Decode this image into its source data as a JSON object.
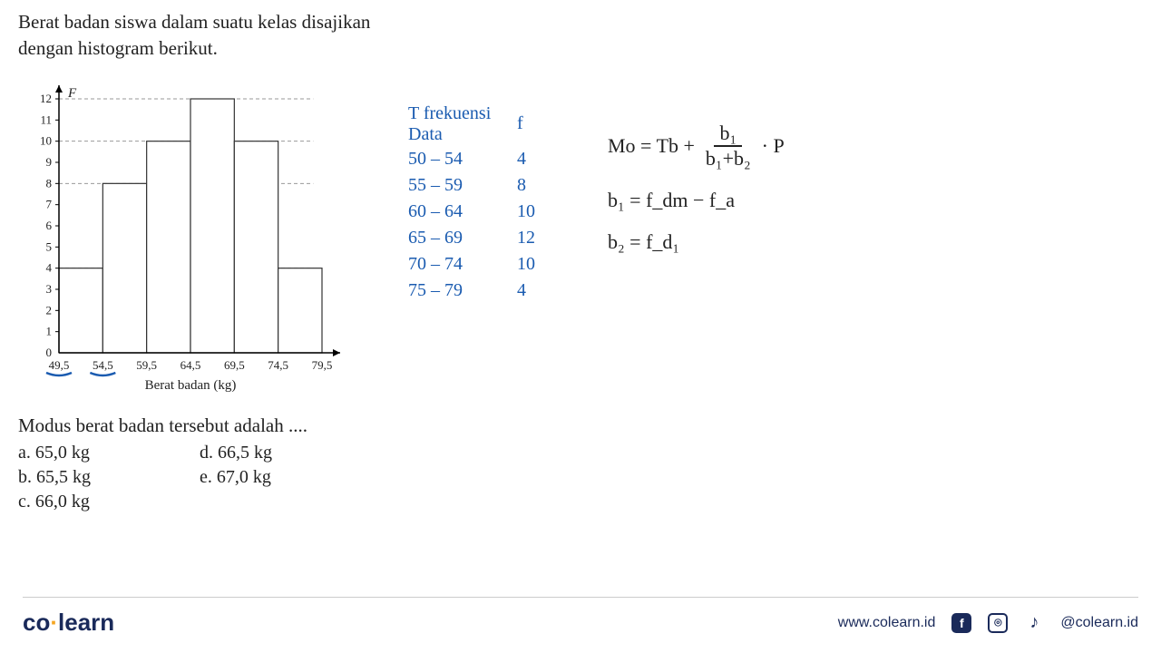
{
  "question": {
    "line1": "Berat badan siswa dalam suatu kelas disajikan",
    "line2": "dengan histogram berikut.",
    "footer": "Modus berat badan tersebut adalah ....",
    "options_col1": [
      {
        "letter": "a.",
        "text": "65,0 kg"
      },
      {
        "letter": "b.",
        "text": "65,5 kg"
      },
      {
        "letter": "c.",
        "text": "66,0 kg"
      }
    ],
    "options_col2": [
      {
        "letter": "d.",
        "text": "66,5 kg"
      },
      {
        "letter": "e.",
        "text": "67,0 kg"
      }
    ]
  },
  "histogram": {
    "type": "histogram",
    "y_label": "F",
    "x_label": "Berat badan (kg)",
    "y_max": 12,
    "y_ticks": [
      0,
      1,
      2,
      3,
      4,
      5,
      6,
      7,
      8,
      9,
      10,
      11,
      12
    ],
    "x_boundaries": [
      "49,5",
      "54,5",
      "59,5",
      "64,5",
      "69,5",
      "74,5",
      "79,5"
    ],
    "bars": [
      4,
      8,
      10,
      12,
      10,
      4
    ],
    "dashed_levels": [
      4,
      8,
      10,
      12
    ],
    "bar_fill": "#ffffff",
    "bar_stroke": "#333333",
    "axis_color": "#000000",
    "grid_dash_color": "#999999",
    "underline_boundaries": [
      0,
      1
    ],
    "underline_color": "#1a5bb0",
    "font_size_ticks": 13,
    "font_size_axis_label": 15
  },
  "freq_table": {
    "header1a": "T frekuensi",
    "header1b": "Data",
    "header2": "f",
    "rows": [
      {
        "range": "50 – 54",
        "f": "4"
      },
      {
        "range": "55 – 59",
        "f": "8"
      },
      {
        "range": "60 – 64",
        "f": "10"
      },
      {
        "range": "65 – 69",
        "f": "12"
      },
      {
        "range": "70 – 74",
        "f": "10"
      },
      {
        "range": "75 – 79",
        "f": "4"
      }
    ],
    "color": "#1a5bb0",
    "font_size": 20
  },
  "formulas": {
    "mo_left": "Mo = Tb +",
    "mo_num": "b₁",
    "mo_den": "b₁+b₂",
    "mo_right": "· P",
    "b1": "b₁ = f_dm − f_a",
    "b2": "b₂ = f_d₁",
    "color": "#222222",
    "font_size": 22
  },
  "footer": {
    "logo_co": "co",
    "logo_learn": "learn",
    "url": "www.colearn.id",
    "handle": "@colearn.id",
    "icons": {
      "facebook": "f",
      "instagram": "⌾",
      "tiktok": "♪"
    }
  }
}
